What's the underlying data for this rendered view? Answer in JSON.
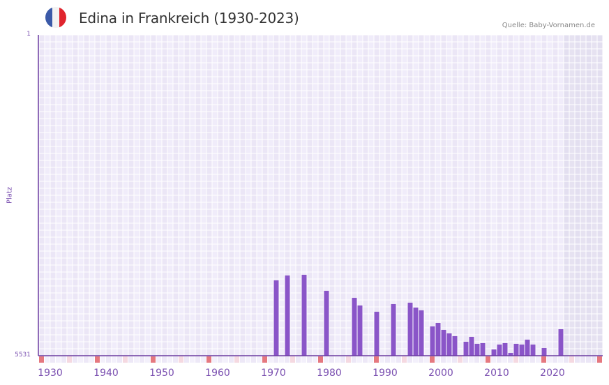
{
  "header": {
    "title": "Edina in Frankreich (1930-2023)",
    "source": "Quelle: Baby-Vornamen.de",
    "flag_colors": [
      "#3b5aa8",
      "#f2f2f2",
      "#e0252e"
    ]
  },
  "colors": {
    "bar": "#8a55c8",
    "axis": "#6a3aa0",
    "grid_bg": "#f0ecfa",
    "grid_alt": "#ebe6f6",
    "future_shade": "#e3dff0",
    "decade_marker": "#e5787f",
    "half_decade_marker": "#f5d9e1",
    "label": "#7a4fb0"
  },
  "chart_data": {
    "type": "bar",
    "title": "Edina in Frankreich (1930-2023)",
    "xlabel": "",
    "ylabel": "Platz",
    "y_inverted": true,
    "ylim": [
      1,
      5531
    ],
    "y_ticks": [
      1,
      5531
    ],
    "x_ticks": [
      1930,
      1940,
      1950,
      1960,
      1970,
      1980,
      1990,
      2000,
      2010,
      2020
    ],
    "x_range": [
      1928,
      2028
    ],
    "grid": true,
    "shaded_from_year": 2022,
    "categories": [
      1970,
      1972,
      1975,
      1979,
      1984,
      1985,
      1988,
      1991,
      1994,
      1995,
      1996,
      1998,
      1999,
      2000,
      2001,
      2002,
      2004,
      2005,
      2006,
      2007,
      2009,
      2010,
      2011,
      2012,
      2013,
      2014,
      2015,
      2016,
      2018,
      2021
    ],
    "values": [
      4232,
      4148,
      4136,
      4412,
      4533,
      4665,
      4773,
      4641,
      4617,
      4701,
      4749,
      5026,
      4966,
      5086,
      5146,
      5194,
      5290,
      5206,
      5326,
      5314,
      5423,
      5339,
      5314,
      5483,
      5326,
      5339,
      5254,
      5339,
      5399,
      5074
    ]
  }
}
